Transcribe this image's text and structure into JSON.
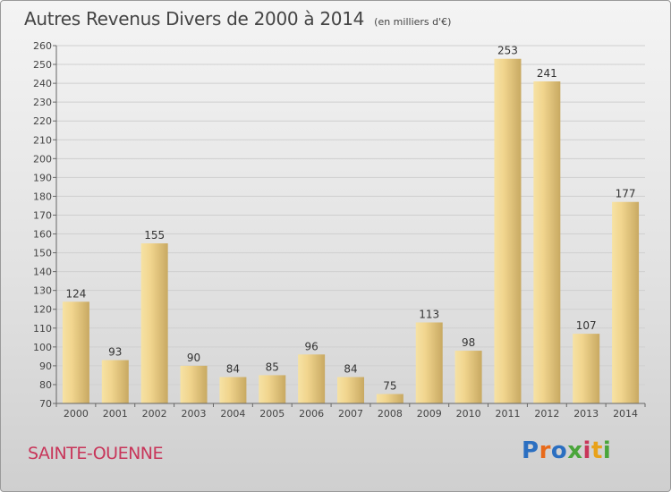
{
  "header": {
    "title": "Autres Revenus Divers de 2000 à 2014",
    "subtitle": "(en milliers d'€)"
  },
  "footer": {
    "commune": "SAINTE-OUENNE",
    "logo": [
      "P",
      "r",
      "o",
      "x",
      "i",
      "t",
      "i"
    ],
    "logo_colors": [
      "#2b6fc1",
      "#e86a1a",
      "#2b6fc1",
      "#4aa53a",
      "#c8365a",
      "#e8a21a",
      "#4aa53a"
    ]
  },
  "chart_data": {
    "type": "bar",
    "categories": [
      "2000",
      "2001",
      "2002",
      "2003",
      "2004",
      "2005",
      "2006",
      "2007",
      "2008",
      "2009",
      "2010",
      "2011",
      "2012",
      "2013",
      "2014"
    ],
    "values": [
      124,
      93,
      155,
      90,
      84,
      85,
      96,
      84,
      75,
      113,
      98,
      253,
      241,
      107,
      177
    ],
    "ylim": [
      70,
      260
    ],
    "yticks": [
      70,
      80,
      90,
      100,
      110,
      120,
      130,
      140,
      150,
      160,
      170,
      180,
      190,
      200,
      210,
      220,
      230,
      240,
      250,
      260
    ],
    "grid": true,
    "bar_color_light": "#f6e2a4",
    "bar_color_dark": "#c8a962"
  }
}
